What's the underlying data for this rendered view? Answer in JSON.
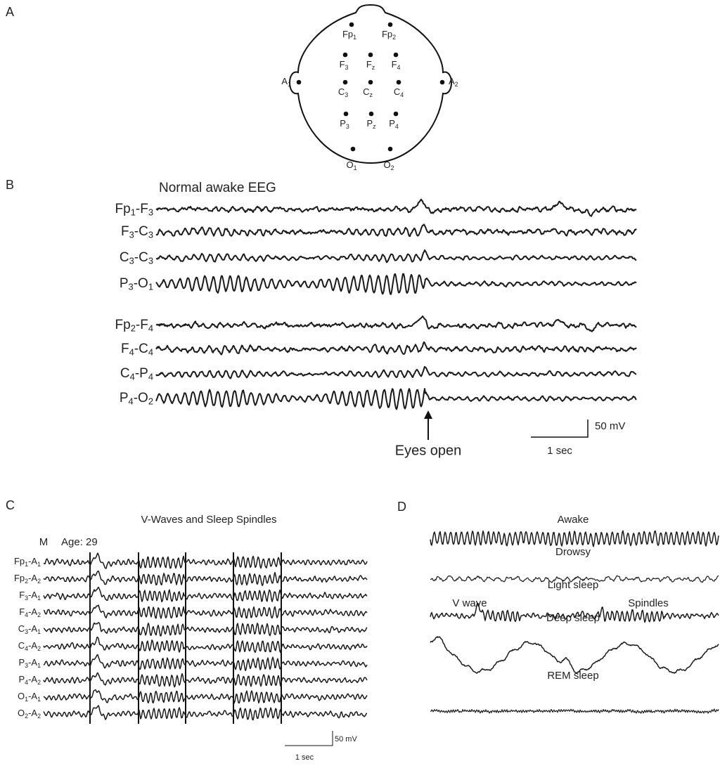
{
  "panels": [
    {
      "label": "A",
      "electrodes": [
        [
          "Fp",
          "1"
        ],
        [
          "Fp",
          "2"
        ],
        [
          "F",
          "3"
        ],
        [
          "F",
          "z"
        ],
        [
          "F",
          "4"
        ],
        [
          "A",
          "1"
        ],
        [
          "A",
          "2"
        ],
        [
          "C",
          "3"
        ],
        [
          "C",
          "z"
        ],
        [
          "C",
          "4"
        ],
        [
          "P",
          "3"
        ],
        [
          "P",
          "z"
        ],
        [
          "P",
          "4"
        ],
        [
          "O",
          "1"
        ],
        [
          "O",
          "2"
        ]
      ]
    },
    {
      "label": "B",
      "title": "Normal awake EEG",
      "channels": [
        [
          "Fp",
          "1",
          "-F",
          "3"
        ],
        [
          "F",
          "3",
          "-C",
          "3"
        ],
        [
          "C",
          "3",
          "-C",
          "3"
        ],
        [
          "P",
          "3",
          "-O",
          "1"
        ],
        [
          "Fp",
          "2",
          "-F",
          "4"
        ],
        [
          "F",
          "4",
          "-C",
          "4"
        ],
        [
          "C",
          "4",
          "-P",
          "4"
        ],
        [
          "P",
          "4",
          "-O",
          "2"
        ]
      ],
      "annotation": "Eyes open",
      "scale_amplitude": "50 mV",
      "scale_time": "1 sec"
    },
    {
      "label": "C",
      "title": "V-Waves and Sleep Spindles",
      "sex": "M",
      "age": "Age: 29",
      "channels": [
        [
          "Fp",
          "1",
          "-A",
          "1"
        ],
        [
          "Fp",
          "2",
          "-A",
          "2"
        ],
        [
          "F",
          "3",
          "-A",
          "1"
        ],
        [
          "F",
          "4",
          "-A",
          "2"
        ],
        [
          "C",
          "3",
          "-A",
          "1"
        ],
        [
          "C",
          "4",
          "-A",
          "2"
        ],
        [
          "P",
          "3",
          "-A",
          "1"
        ],
        [
          "P",
          "4",
          "-A",
          "2"
        ],
        [
          "O",
          "1",
          "-A",
          "1"
        ],
        [
          "O",
          "2",
          "-A",
          "2"
        ]
      ],
      "scale_amplitude": "50 mV",
      "scale_time": "1 sec"
    },
    {
      "label": "D",
      "states": [
        "Awake",
        "Drowsy",
        "Light sleep",
        "Deep sleep",
        "REM sleep"
      ],
      "annotations": [
        "V wave",
        "Spindles"
      ]
    }
  ]
}
